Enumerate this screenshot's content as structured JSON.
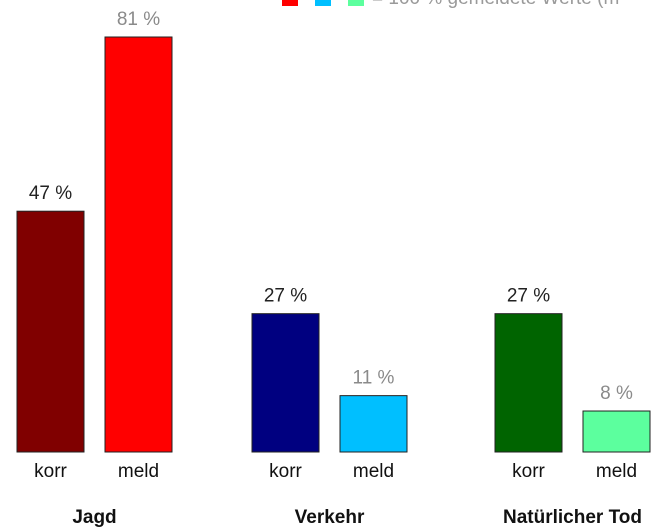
{
  "chart_data": {
    "type": "bar",
    "legend_text": "= 100 % gemeldete Werte (m",
    "categories": [
      "Jagd",
      "Verkehr",
      "Natürlicher Tod"
    ],
    "series": [
      {
        "name": "korr",
        "colors": [
          "#800000",
          "#000080",
          "#006400"
        ],
        "label_color": "#222222",
        "values": [
          47,
          27,
          27
        ],
        "value_labels": [
          "47 %",
          "27 %",
          "27 %"
        ]
      },
      {
        "name": "meld",
        "colors": [
          "#ff0000",
          "#00bfff",
          "#5cff9e"
        ],
        "label_color": "#8a8a8a",
        "values": [
          81,
          11,
          8
        ],
        "value_labels": [
          "81 %",
          "11 %",
          "8 %"
        ]
      }
    ]
  }
}
